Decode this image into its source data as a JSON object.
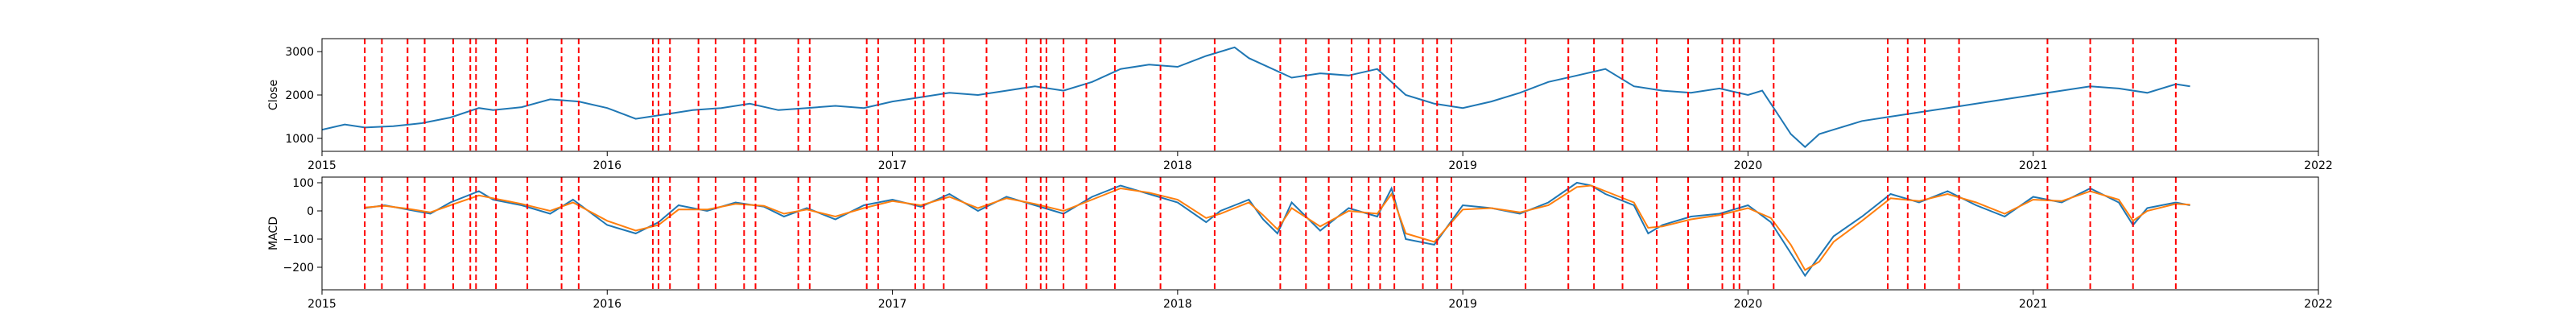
{
  "colors": {
    "close": "#1f77b4",
    "macd": "#1f77b4",
    "signal": "#ff7f0e",
    "event_line": "#ff0000",
    "axes": "#000000",
    "background": "#ffffff"
  },
  "chart_data": [
    {
      "type": "line",
      "title": "",
      "xlabel": "",
      "ylabel": "Close",
      "xlim": [
        2015,
        2022
      ],
      "ylim": [
        700,
        3300
      ],
      "x_tick_labels": [
        "2015",
        "2016",
        "2017",
        "2018",
        "2019",
        "2020",
        "2021",
        "2022"
      ],
      "y_tick_labels": [
        "1000",
        "2000",
        "3000"
      ],
      "y_ticks": [
        1000,
        2000,
        3000
      ],
      "grid": false,
      "series": [
        {
          "x": [
            2015.0,
            2015.08,
            2015.15,
            2015.25,
            2015.35,
            2015.45,
            2015.55,
            2015.6,
            2015.7,
            2015.8,
            2015.9,
            2016.0,
            2016.1,
            2016.2,
            2016.3,
            2016.4,
            2016.5,
            2016.6,
            2016.7,
            2016.8,
            2016.9,
            2017.0,
            2017.1,
            2017.2,
            2017.3,
            2017.4,
            2017.5,
            2017.6,
            2017.7,
            2017.8,
            2017.9,
            2018.0,
            2018.1,
            2018.2,
            2018.25,
            2018.3,
            2018.4,
            2018.5,
            2018.6,
            2018.7,
            2018.8,
            2018.9,
            2019.0,
            2019.1,
            2019.2,
            2019.3,
            2019.4,
            2019.5,
            2019.6,
            2019.7,
            2019.8,
            2019.9,
            2020.0,
            2020.05,
            2020.1,
            2020.15,
            2020.2,
            2020.25,
            2020.3,
            2020.4,
            2020.5,
            2020.6,
            2020.7,
            2020.8,
            2020.9,
            2021.0,
            2021.1,
            2021.2,
            2021.3,
            2021.4,
            2021.5,
            2021.55
          ],
          "values": [
            1200,
            1320,
            1250,
            1280,
            1350,
            1480,
            1700,
            1650,
            1720,
            1900,
            1850,
            1700,
            1450,
            1550,
            1650,
            1700,
            1800,
            1650,
            1700,
            1750,
            1700,
            1850,
            1950,
            2050,
            2000,
            2100,
            2200,
            2100,
            2300,
            2600,
            2700,
            2650,
            2900,
            3100,
            2850,
            2700,
            2400,
            2500,
            2450,
            2600,
            2000,
            1800,
            1700,
            1850,
            2050,
            2300,
            2450,
            2600,
            2200,
            2100,
            2050,
            2150,
            2000,
            2100,
            1600,
            1100,
            800,
            1100,
            1200,
            1400,
            1500,
            1600,
            1700,
            1800,
            1900,
            2000,
            2100,
            2200,
            2150,
            2050,
            2250,
            2200
          ]
        }
      ],
      "event_lines_x": [
        2015.15,
        2015.21,
        2015.3,
        2015.36,
        2015.46,
        2015.52,
        2015.54,
        2015.61,
        2015.72,
        2015.84,
        2015.9,
        2016.16,
        2016.18,
        2016.22,
        2016.32,
        2016.38,
        2016.48,
        2016.52,
        2016.67,
        2016.71,
        2016.91,
        2016.95,
        2017.08,
        2017.11,
        2017.18,
        2017.33,
        2017.47,
        2017.52,
        2017.54,
        2017.6,
        2017.68,
        2017.78,
        2017.94,
        2018.13,
        2018.36,
        2018.45,
        2018.53,
        2018.61,
        2018.67,
        2018.71,
        2018.76,
        2018.86,
        2018.91,
        2018.96,
        2019.22,
        2019.37,
        2019.46,
        2019.56,
        2019.68,
        2019.79,
        2019.91,
        2019.95,
        2019.97,
        2020.09,
        2020.49,
        2020.56,
        2020.62,
        2020.74,
        2021.05,
        2021.2,
        2021.35,
        2021.5
      ]
    },
    {
      "type": "line",
      "title": "",
      "xlabel": "",
      "ylabel": "MACD",
      "xlim": [
        2015,
        2022
      ],
      "ylim": [
        -280,
        120
      ],
      "x_tick_labels": [
        "2015",
        "2016",
        "2017",
        "2018",
        "2019",
        "2020",
        "2021",
        "2022"
      ],
      "y_tick_labels": [
        "100",
        "0",
        "−100",
        "−200"
      ],
      "y_ticks": [
        100,
        0,
        -100,
        -200
      ],
      "grid": false,
      "series": [
        {
          "x": [
            2015.15,
            2015.22,
            2015.3,
            2015.38,
            2015.45,
            2015.55,
            2015.6,
            2015.7,
            2015.8,
            2015.88,
            2016.0,
            2016.1,
            2016.18,
            2016.25,
            2016.35,
            2016.45,
            2016.55,
            2016.62,
            2016.7,
            2016.8,
            2016.9,
            2017.0,
            2017.1,
            2017.2,
            2017.3,
            2017.4,
            2017.5,
            2017.6,
            2017.7,
            2017.8,
            2017.9,
            2018.0,
            2018.1,
            2018.15,
            2018.2,
            2018.25,
            2018.3,
            2018.35,
            2018.4,
            2018.5,
            2018.6,
            2018.7,
            2018.75,
            2018.8,
            2018.9,
            2019.0,
            2019.1,
            2019.2,
            2019.3,
            2019.4,
            2019.45,
            2019.5,
            2019.6,
            2019.65,
            2019.7,
            2019.8,
            2019.9,
            2020.0,
            2020.08,
            2020.15,
            2020.2,
            2020.25,
            2020.3,
            2020.4,
            2020.5,
            2020.6,
            2020.7,
            2020.8,
            2020.9,
            2021.0,
            2021.1,
            2021.2,
            2021.3,
            2021.35,
            2021.4,
            2021.5,
            2021.55
          ],
          "values": [
            10,
            20,
            5,
            -10,
            30,
            70,
            40,
            20,
            -10,
            40,
            -50,
            -80,
            -40,
            20,
            0,
            30,
            15,
            -20,
            10,
            -30,
            20,
            40,
            15,
            60,
            0,
            50,
            20,
            -10,
            50,
            90,
            60,
            30,
            -40,
            0,
            20,
            40,
            -30,
            -80,
            30,
            -70,
            10,
            -20,
            80,
            -100,
            -120,
            20,
            10,
            -10,
            30,
            100,
            90,
            60,
            20,
            -80,
            -50,
            -20,
            -10,
            20,
            -40,
            -150,
            -230,
            -160,
            -90,
            -20,
            60,
            30,
            70,
            20,
            -20,
            50,
            30,
            80,
            30,
            -50,
            10,
            30,
            20
          ]
        },
        {
          "x": [
            2015.15,
            2015.22,
            2015.3,
            2015.38,
            2015.45,
            2015.55,
            2015.6,
            2015.7,
            2015.8,
            2015.88,
            2016.0,
            2016.1,
            2016.18,
            2016.25,
            2016.35,
            2016.45,
            2016.55,
            2016.62,
            2016.7,
            2016.8,
            2016.9,
            2017.0,
            2017.1,
            2017.2,
            2017.3,
            2017.4,
            2017.5,
            2017.6,
            2017.7,
            2017.8,
            2017.9,
            2018.0,
            2018.1,
            2018.15,
            2018.2,
            2018.25,
            2018.3,
            2018.35,
            2018.4,
            2018.5,
            2018.6,
            2018.7,
            2018.75,
            2018.8,
            2018.9,
            2019.0,
            2019.1,
            2019.2,
            2019.3,
            2019.4,
            2019.45,
            2019.5,
            2019.6,
            2019.65,
            2019.7,
            2019.8,
            2019.9,
            2020.0,
            2020.08,
            2020.15,
            2020.2,
            2020.25,
            2020.3,
            2020.4,
            2020.5,
            2020.6,
            2020.7,
            2020.8,
            2020.9,
            2021.0,
            2021.1,
            2021.2,
            2021.3,
            2021.35,
            2021.4,
            2021.5,
            2021.55
          ],
          "values": [
            12,
            18,
            8,
            -5,
            20,
            55,
            45,
            25,
            0,
            30,
            -35,
            -70,
            -50,
            5,
            5,
            25,
            18,
            -10,
            5,
            -20,
            10,
            35,
            20,
            50,
            10,
            45,
            25,
            0,
            40,
            80,
            65,
            40,
            -25,
            -10,
            10,
            30,
            -15,
            -65,
            10,
            -55,
            0,
            -10,
            60,
            -80,
            -110,
            5,
            10,
            -5,
            20,
            85,
            90,
            70,
            30,
            -60,
            -55,
            -30,
            -15,
            10,
            -25,
            -120,
            -210,
            -180,
            -110,
            -35,
            45,
            35,
            60,
            30,
            -10,
            40,
            35,
            70,
            40,
            -35,
            0,
            25,
            22
          ]
        }
      ],
      "event_lines_x": [
        2015.15,
        2015.21,
        2015.3,
        2015.36,
        2015.46,
        2015.52,
        2015.54,
        2015.61,
        2015.72,
        2015.84,
        2015.9,
        2016.16,
        2016.18,
        2016.22,
        2016.32,
        2016.38,
        2016.48,
        2016.52,
        2016.67,
        2016.71,
        2016.91,
        2016.95,
        2017.08,
        2017.11,
        2017.18,
        2017.33,
        2017.47,
        2017.52,
        2017.54,
        2017.6,
        2017.68,
        2017.78,
        2017.94,
        2018.13,
        2018.36,
        2018.45,
        2018.53,
        2018.61,
        2018.67,
        2018.71,
        2018.76,
        2018.86,
        2018.91,
        2018.96,
        2019.22,
        2019.37,
        2019.46,
        2019.56,
        2019.68,
        2019.79,
        2019.91,
        2019.95,
        2019.97,
        2020.09,
        2020.49,
        2020.56,
        2020.62,
        2020.74,
        2021.05,
        2021.2,
        2021.35,
        2021.5
      ]
    }
  ]
}
